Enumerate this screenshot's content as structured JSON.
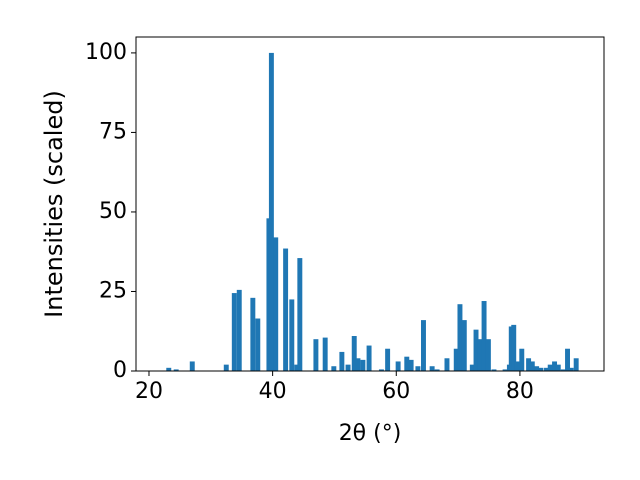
{
  "chart_data": {
    "type": "bar",
    "xlabel": "2θ (°)",
    "ylabel": "Intensities (scaled)",
    "color": "#1f77b4",
    "x": [
      23.2,
      24.4,
      27.0,
      32.5,
      33.8,
      34.6,
      36.8,
      37.6,
      39.4,
      39.8,
      40.5,
      42.1,
      43.1,
      43.9,
      44.4,
      47.0,
      48.5,
      49.9,
      51.2,
      52.2,
      53.2,
      53.8,
      54.6,
      55.6,
      57.6,
      58.6,
      60.3,
      61.7,
      62.4,
      63.5,
      64.4,
      65.8,
      66.6,
      68.2,
      69.7,
      70.3,
      71.0,
      72.3,
      72.9,
      73.6,
      74.2,
      74.9,
      75.8,
      77.6,
      78.3,
      78.6,
      79.0,
      79.6,
      80.3,
      81.4,
      82.0,
      82.7,
      83.4,
      84.3,
      84.9,
      85.6,
      86.2,
      87.0,
      87.7,
      88.3,
      89.1
    ],
    "values": [
      1,
      0.5,
      3,
      2,
      24.5,
      25.5,
      23,
      16.5,
      48,
      100,
      42,
      38.5,
      22.5,
      2,
      35.5,
      10,
      10.5,
      1.5,
      6,
      2,
      11,
      4,
      3.5,
      8,
      0.5,
      7,
      3,
      4.5,
      3.5,
      1.5,
      16,
      1.5,
      0.5,
      4,
      7,
      21,
      16,
      2,
      13,
      10,
      22,
      10,
      0.5,
      0.5,
      2,
      14,
      14.5,
      3,
      7,
      4,
      3,
      1.5,
      1,
      1,
      2,
      3,
      2,
      0.5,
      7,
      1,
      4
    ],
    "xlim": [
      17.9,
      93.6
    ],
    "ylim": [
      0,
      105
    ],
    "xticks": [
      20,
      40,
      60,
      80
    ],
    "yticks": [
      0,
      25,
      50,
      75,
      100
    ]
  }
}
